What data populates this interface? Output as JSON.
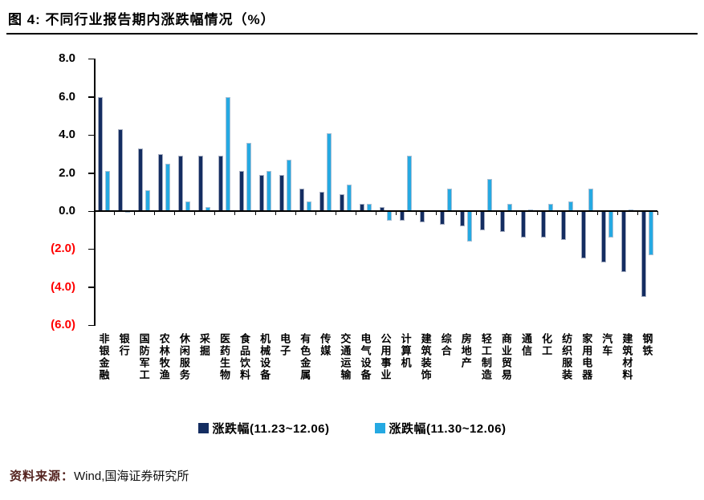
{
  "header": {
    "title": "图 4:  不同行业报告期内涨跌幅情况（%）"
  },
  "legend": [
    {
      "label": "涨跌幅(11.23~12.06)",
      "color": "#142D61"
    },
    {
      "label": "涨跌幅(11.30~12.06)",
      "color": "#25A9E2"
    }
  ],
  "footer": {
    "source_label": "资料来源：",
    "source_text": "Wind,国海证券研究所"
  },
  "chart_data": {
    "type": "bar",
    "title": "不同行业报告期内涨跌幅情况（%）",
    "xlabel": "",
    "ylabel": "",
    "grid": false,
    "legend_position": "bottom",
    "y_axis": {
      "max": 8,
      "min": -6,
      "tick_labels": [
        "8.0",
        "6.0",
        "4.0",
        "2.0",
        "0.0",
        "(2.0)",
        "(4.0)",
        "(6.0)"
      ],
      "tick_values": [
        8,
        6,
        4,
        2,
        0,
        -2,
        -4,
        -6
      ],
      "positive_color": "#000000",
      "negative_color": "#FF0000"
    },
    "categories": [
      "非银金融",
      "银行",
      "国防军工",
      "农林牧渔",
      "休闲服务",
      "采掘",
      "医药生物",
      "食品饮料",
      "机械设备",
      "电子",
      "有色金属",
      "传媒",
      "交通运输",
      "电气设备",
      "公用事业",
      "计算机",
      "建筑装饰",
      "综合",
      "房地产",
      "轻工制造",
      "商业贸易",
      "通信",
      "化工",
      "纺织服装",
      "家用电器",
      "汽车",
      "建筑材料",
      "钢铁"
    ],
    "series": [
      {
        "name": "涨跌幅(11.23~12.06)",
        "color": "#142D61",
        "values": [
          6.0,
          4.3,
          3.3,
          3.0,
          2.9,
          2.9,
          2.9,
          2.1,
          1.9,
          1.9,
          1.2,
          1.0,
          0.9,
          0.4,
          0.2,
          -0.5,
          -0.6,
          -0.7,
          -0.8,
          -1.0,
          -1.1,
          -1.4,
          -1.4,
          -1.5,
          -2.5,
          -2.7,
          -3.2,
          -4.5
        ]
      },
      {
        "name": "涨跌幅(11.30~12.06)",
        "color": "#25A9E2",
        "values": [
          2.1,
          -0.1,
          1.1,
          2.5,
          0.5,
          0.2,
          6.0,
          3.6,
          2.1,
          2.7,
          0.5,
          4.1,
          1.4,
          0.4,
          -0.5,
          2.9,
          0.0,
          1.2,
          -1.6,
          1.7,
          0.4,
          0.1,
          0.4,
          0.5,
          1.2,
          -1.4,
          0.1,
          -2.3
        ]
      }
    ]
  }
}
